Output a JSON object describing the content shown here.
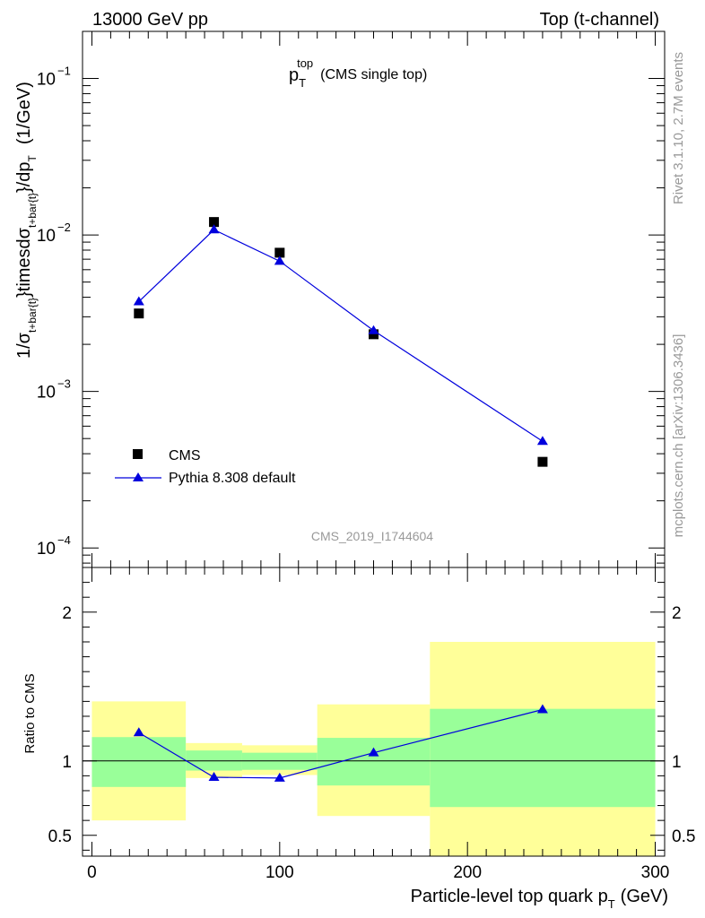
{
  "header": {
    "left": "13000 GeV pp",
    "right": "Top (t-channel)"
  },
  "side_labels": {
    "rivet": "Rivet 3.1.10,  2.7M events",
    "mcplots": "mcplots.cern.ch [arXiv:1306.3436]"
  },
  "chart_data": [
    {
      "type": "scatter",
      "title_main": "p",
      "title_sup": "top",
      "title_sub": "T",
      "title_suffix": "(CMS single top)",
      "analysis_label": "CMS_2019_I1744604",
      "yscale": "log",
      "ylabel": {
        "a": "1/σ",
        "a_sub": "t+bar{t}",
        "b": "}timesdσ",
        "b_sub": "t+bar{t}",
        "c": "}/dp",
        "c_sub": "T",
        "unit": "(1/GeV)"
      },
      "xlim": [
        -5,
        305
      ],
      "ylim": [
        7.5e-05,
        0.2
      ],
      "y_ticks": [
        {
          "value": 0.1,
          "base": "10",
          "exp": "−1"
        },
        {
          "value": 0.01,
          "base": "10",
          "exp": "−2"
        },
        {
          "value": 0.001,
          "base": "10",
          "exp": "−3"
        },
        {
          "value": 0.0001,
          "base": "10",
          "exp": "−4"
        }
      ],
      "legend_position": "bottom-left",
      "series": [
        {
          "name": "CMS",
          "marker": "square",
          "color": "#000000",
          "x": [
            25,
            65,
            100,
            150,
            240
          ],
          "y": [
            0.00315,
            0.0121,
            0.0077,
            0.00232,
            0.000355
          ]
        },
        {
          "name": "Pythia 8.308 default",
          "marker": "triangle",
          "color": "#0000dd",
          "x": [
            25,
            65,
            100,
            150,
            240
          ],
          "y": [
            0.00375,
            0.0108,
            0.0068,
            0.00245,
            0.00048
          ]
        }
      ]
    },
    {
      "type": "line",
      "ylabel": "Ratio to CMS",
      "xlabel": "Particle-level top quark p",
      "xlabel_sub": "T",
      "xlabel_unit": "(GeV)",
      "xlim": [
        -5,
        305
      ],
      "ylim": [
        0.36,
        2.3
      ],
      "x_ticks": [
        0,
        100,
        200,
        300
      ],
      "y_ticks": [
        0.5,
        1,
        2
      ],
      "reference_line": 1,
      "bins": [
        {
          "lo": 0,
          "hi": 50,
          "green": [
            0.825,
            1.16
          ],
          "yellow": [
            0.6,
            1.4
          ]
        },
        {
          "lo": 50,
          "hi": 80,
          "green": [
            0.935,
            1.07
          ],
          "yellow": [
            0.885,
            1.12
          ]
        },
        {
          "lo": 80,
          "hi": 120,
          "green": [
            0.94,
            1.055
          ],
          "yellow": [
            0.905,
            1.105
          ]
        },
        {
          "lo": 120,
          "hi": 180,
          "green": [
            0.835,
            1.155
          ],
          "yellow": [
            0.63,
            1.38
          ]
        },
        {
          "lo": 180,
          "hi": 300,
          "green": [
            0.69,
            1.35
          ],
          "yellow": [
            0.36,
            1.8
          ]
        }
      ],
      "series": [
        {
          "name": "Pythia 8.308 default",
          "color": "#0000dd",
          "x": [
            25,
            65,
            100,
            150,
            240
          ],
          "y": [
            1.19,
            0.89,
            0.885,
            1.055,
            1.345
          ]
        }
      ]
    }
  ],
  "colors": {
    "band_green": "#99ff99",
    "band_yellow": "#ffff99",
    "mc": "#0000dd",
    "data": "#000000"
  }
}
